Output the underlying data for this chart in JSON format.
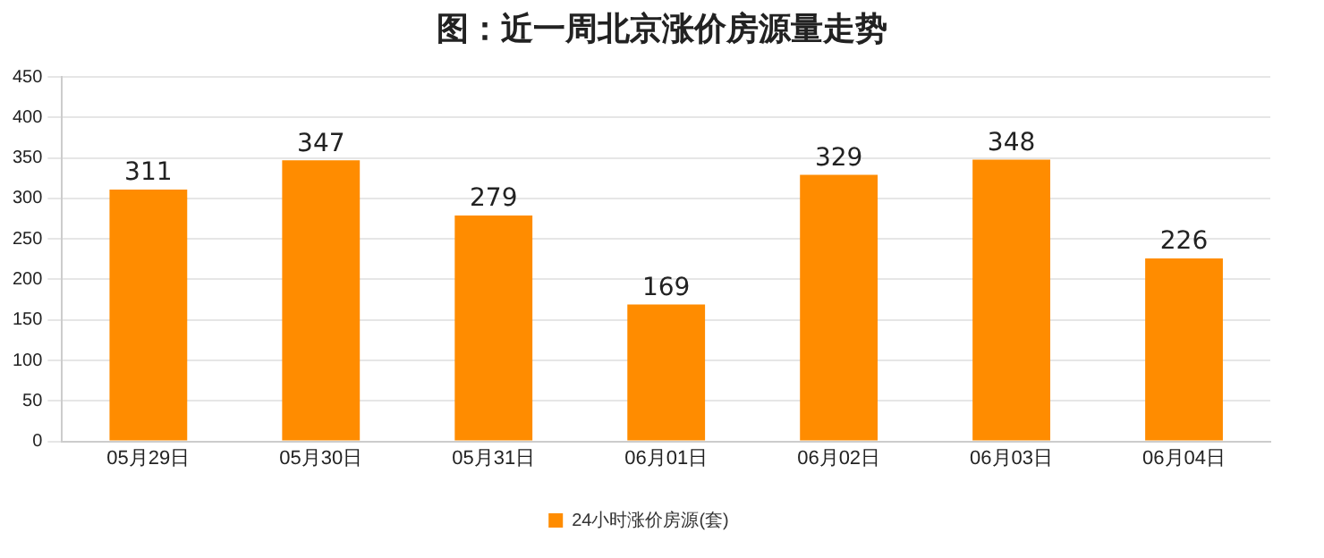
{
  "chart_data": {
    "type": "bar",
    "title": "图：近一周北京涨价房源量走势",
    "categories": [
      "05月29日",
      "05月30日",
      "05月31日",
      "06月01日",
      "06月02日",
      "06月03日",
      "06月04日"
    ],
    "series": [
      {
        "name": "24小时涨价房源(套)",
        "color": "#ff8c00",
        "values": [
          311,
          347,
          279,
          169,
          329,
          348,
          226
        ]
      }
    ],
    "ylim": [
      0,
      450
    ],
    "yticks": [
      0,
      50,
      100,
      150,
      200,
      250,
      300,
      350,
      400,
      450
    ],
    "grid": "y",
    "legend": "bottom",
    "data_labels": true
  }
}
